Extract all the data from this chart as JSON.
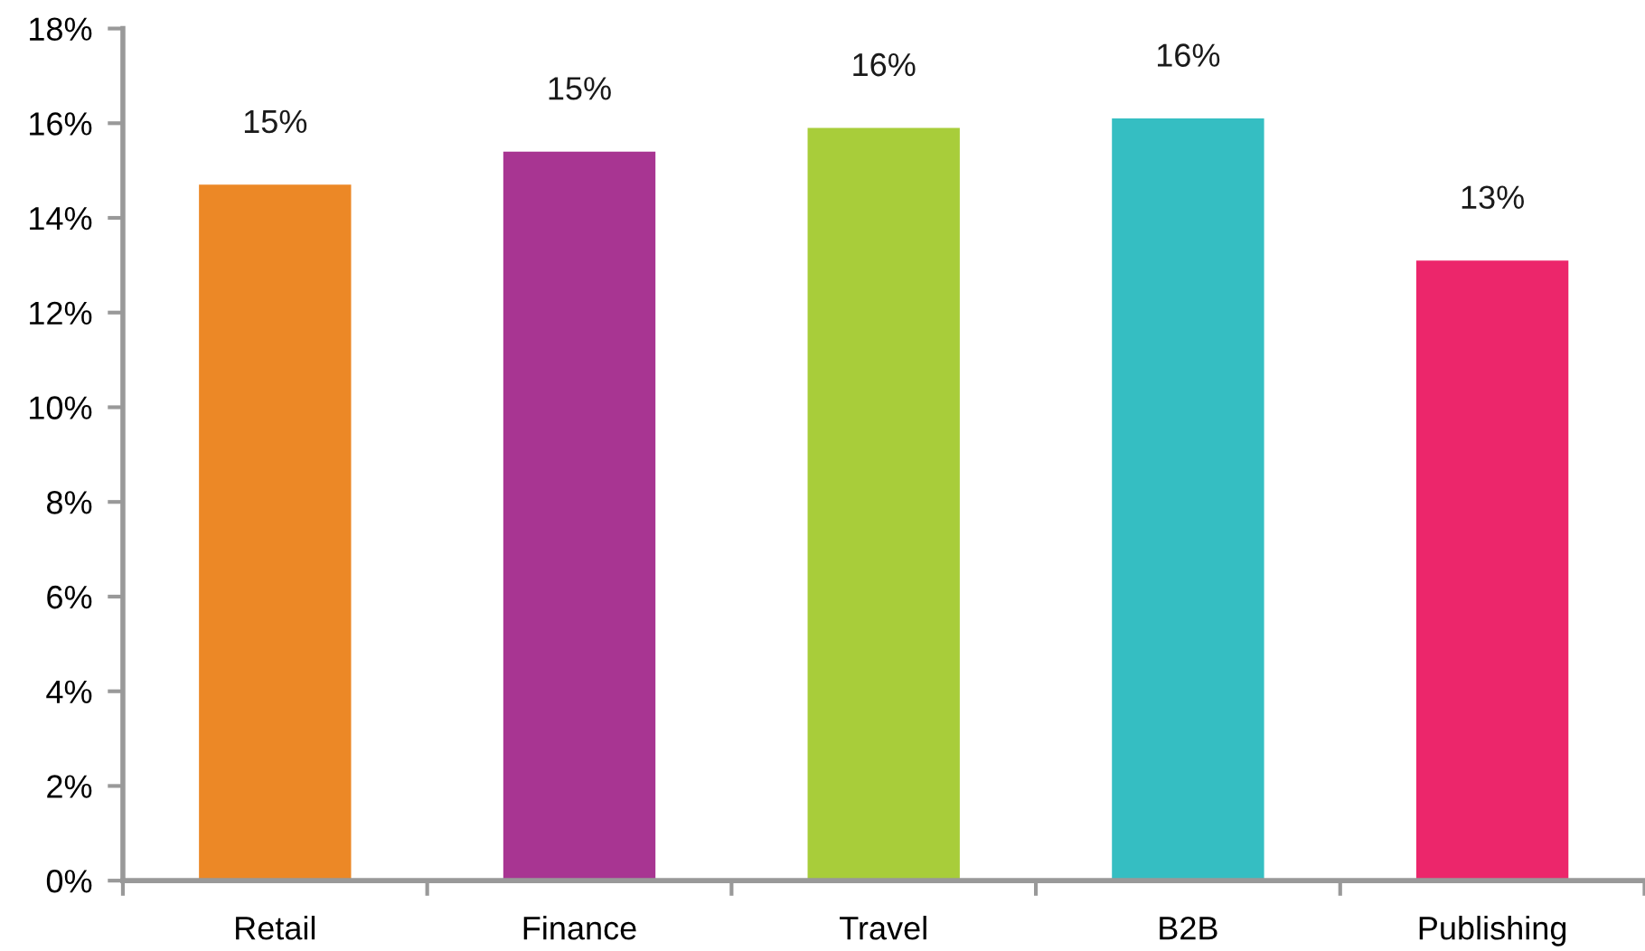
{
  "chart_data": {
    "type": "bar",
    "categories": [
      "Retail",
      "Finance",
      "Travel",
      "B2B",
      "Publishing"
    ],
    "values": [
      14.7,
      15.4,
      15.9,
      16.1,
      13.1
    ],
    "colors": [
      "#ec8826",
      "#a83592",
      "#a8cd3a",
      "#35bec2",
      "#ec266b"
    ],
    "value_labels": [
      "15%",
      "15%",
      "16%",
      "16%",
      "13%"
    ],
    "ylim": [
      0,
      18
    ],
    "yticks": [
      {
        "value": 0,
        "label": "0%"
      },
      {
        "value": 2,
        "label": "2%"
      },
      {
        "value": 4,
        "label": "4%"
      },
      {
        "value": 6,
        "label": "6%"
      },
      {
        "value": 8,
        "label": "8%"
      },
      {
        "value": 10,
        "label": "10%"
      },
      {
        "value": 12,
        "label": "12%"
      },
      {
        "value": 14,
        "label": "14%"
      },
      {
        "value": 16,
        "label": "16%"
      },
      {
        "value": 18,
        "label": "18%"
      }
    ],
    "grid": false,
    "legend": false
  }
}
